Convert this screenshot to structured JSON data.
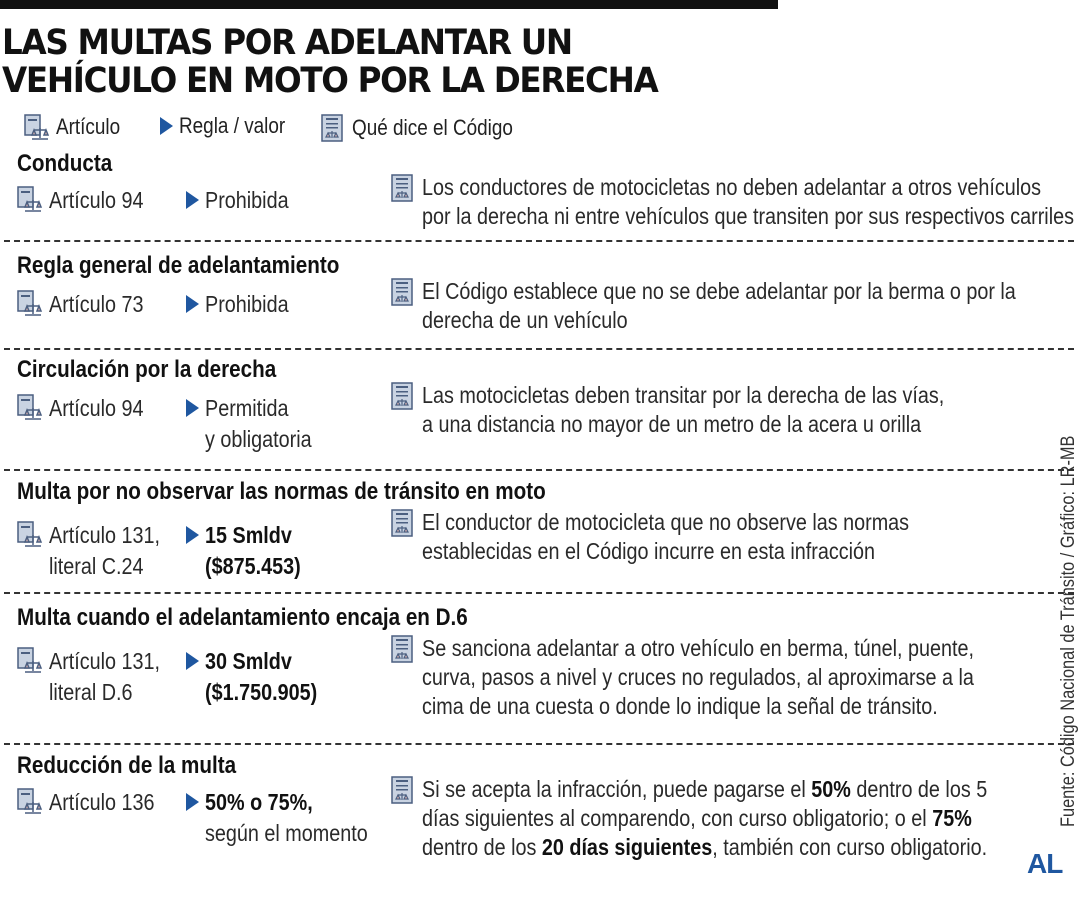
{
  "title": "LAS MULTAS POR ADELANTAR UN VEHÍCULO EN MOTO POR LA DERECHA",
  "legend": {
    "article_label": "Artículo",
    "rule_label": "Regla / valor",
    "code_label": "Qué dice el Código",
    "icons": [
      "law-book-icon",
      "arrow-right-icon",
      "document-icon"
    ],
    "accent_color": "#1f57a0"
  },
  "rows": [
    {
      "title": "Conducta",
      "article": "Artículo 94",
      "value": "Prohibida",
      "value_bold": false,
      "value_sub": "",
      "desc_html": "Los conductores de motocicletas no deben adelantar a otros vehículos<br>por la derecha ni entre vehículos que transiten por sus respectivos carriles"
    },
    {
      "title": "Regla general de adelantamiento",
      "article": "Artículo 73",
      "value": "Prohibida",
      "value_bold": false,
      "value_sub": "",
      "desc_html": "El Código establece que no se debe adelantar por la berma o por la<br>derecha de un vehículo"
    },
    {
      "title": "Circulación por la derecha",
      "article": "Artículo 94",
      "value": "Permitida\ny obligatoria",
      "value_bold": false,
      "value_sub": "",
      "desc_html": "Las motocicletas deben transitar por la derecha de las vías,<br>a una distancia no mayor de un metro de la acera u orilla"
    },
    {
      "title": "Multa por no observar las normas de tránsito en moto",
      "article": "Artículo 131,\nliteral C.24",
      "value": "15 Smldv\n($875.453)",
      "value_bold": true,
      "value_sub": "",
      "desc_html": "El conductor de motocicleta que no observe las normas<br>establecidas en el Código incurre en esta infracción"
    },
    {
      "title": "Multa cuando el adelantamiento encaja en D.6",
      "article": "Artículo 131,\nliteral D.6",
      "value": "30 Smldv\n($1.750.905)",
      "value_bold": true,
      "value_sub": "",
      "desc_html": "Se sanciona adelantar a otro vehículo en berma, túnel, puente,<br>curva, pasos a nivel y cruces no regulados, al aproximarse a la<br>cima de una cuesta o donde lo indique la señal de tránsito."
    },
    {
      "title": "Reducción de la multa",
      "article": "Artículo 136",
      "value": "50% o 75%,",
      "value_bold": true,
      "value_sub": "según el momento",
      "desc_html": "Si se acepta la infracción, puede pagarse el <b>50%</b> dentro de los 5<br>días siguientes al comparendo, con curso obligatorio; o el <b>75%</b><br>dentro de los <b>20 días siguientes</b>, también con curso obligatorio."
    }
  ],
  "source": "Fuente: Código Nacional de Tránsito / Gráfico: LR-MB",
  "brand": "AL"
}
